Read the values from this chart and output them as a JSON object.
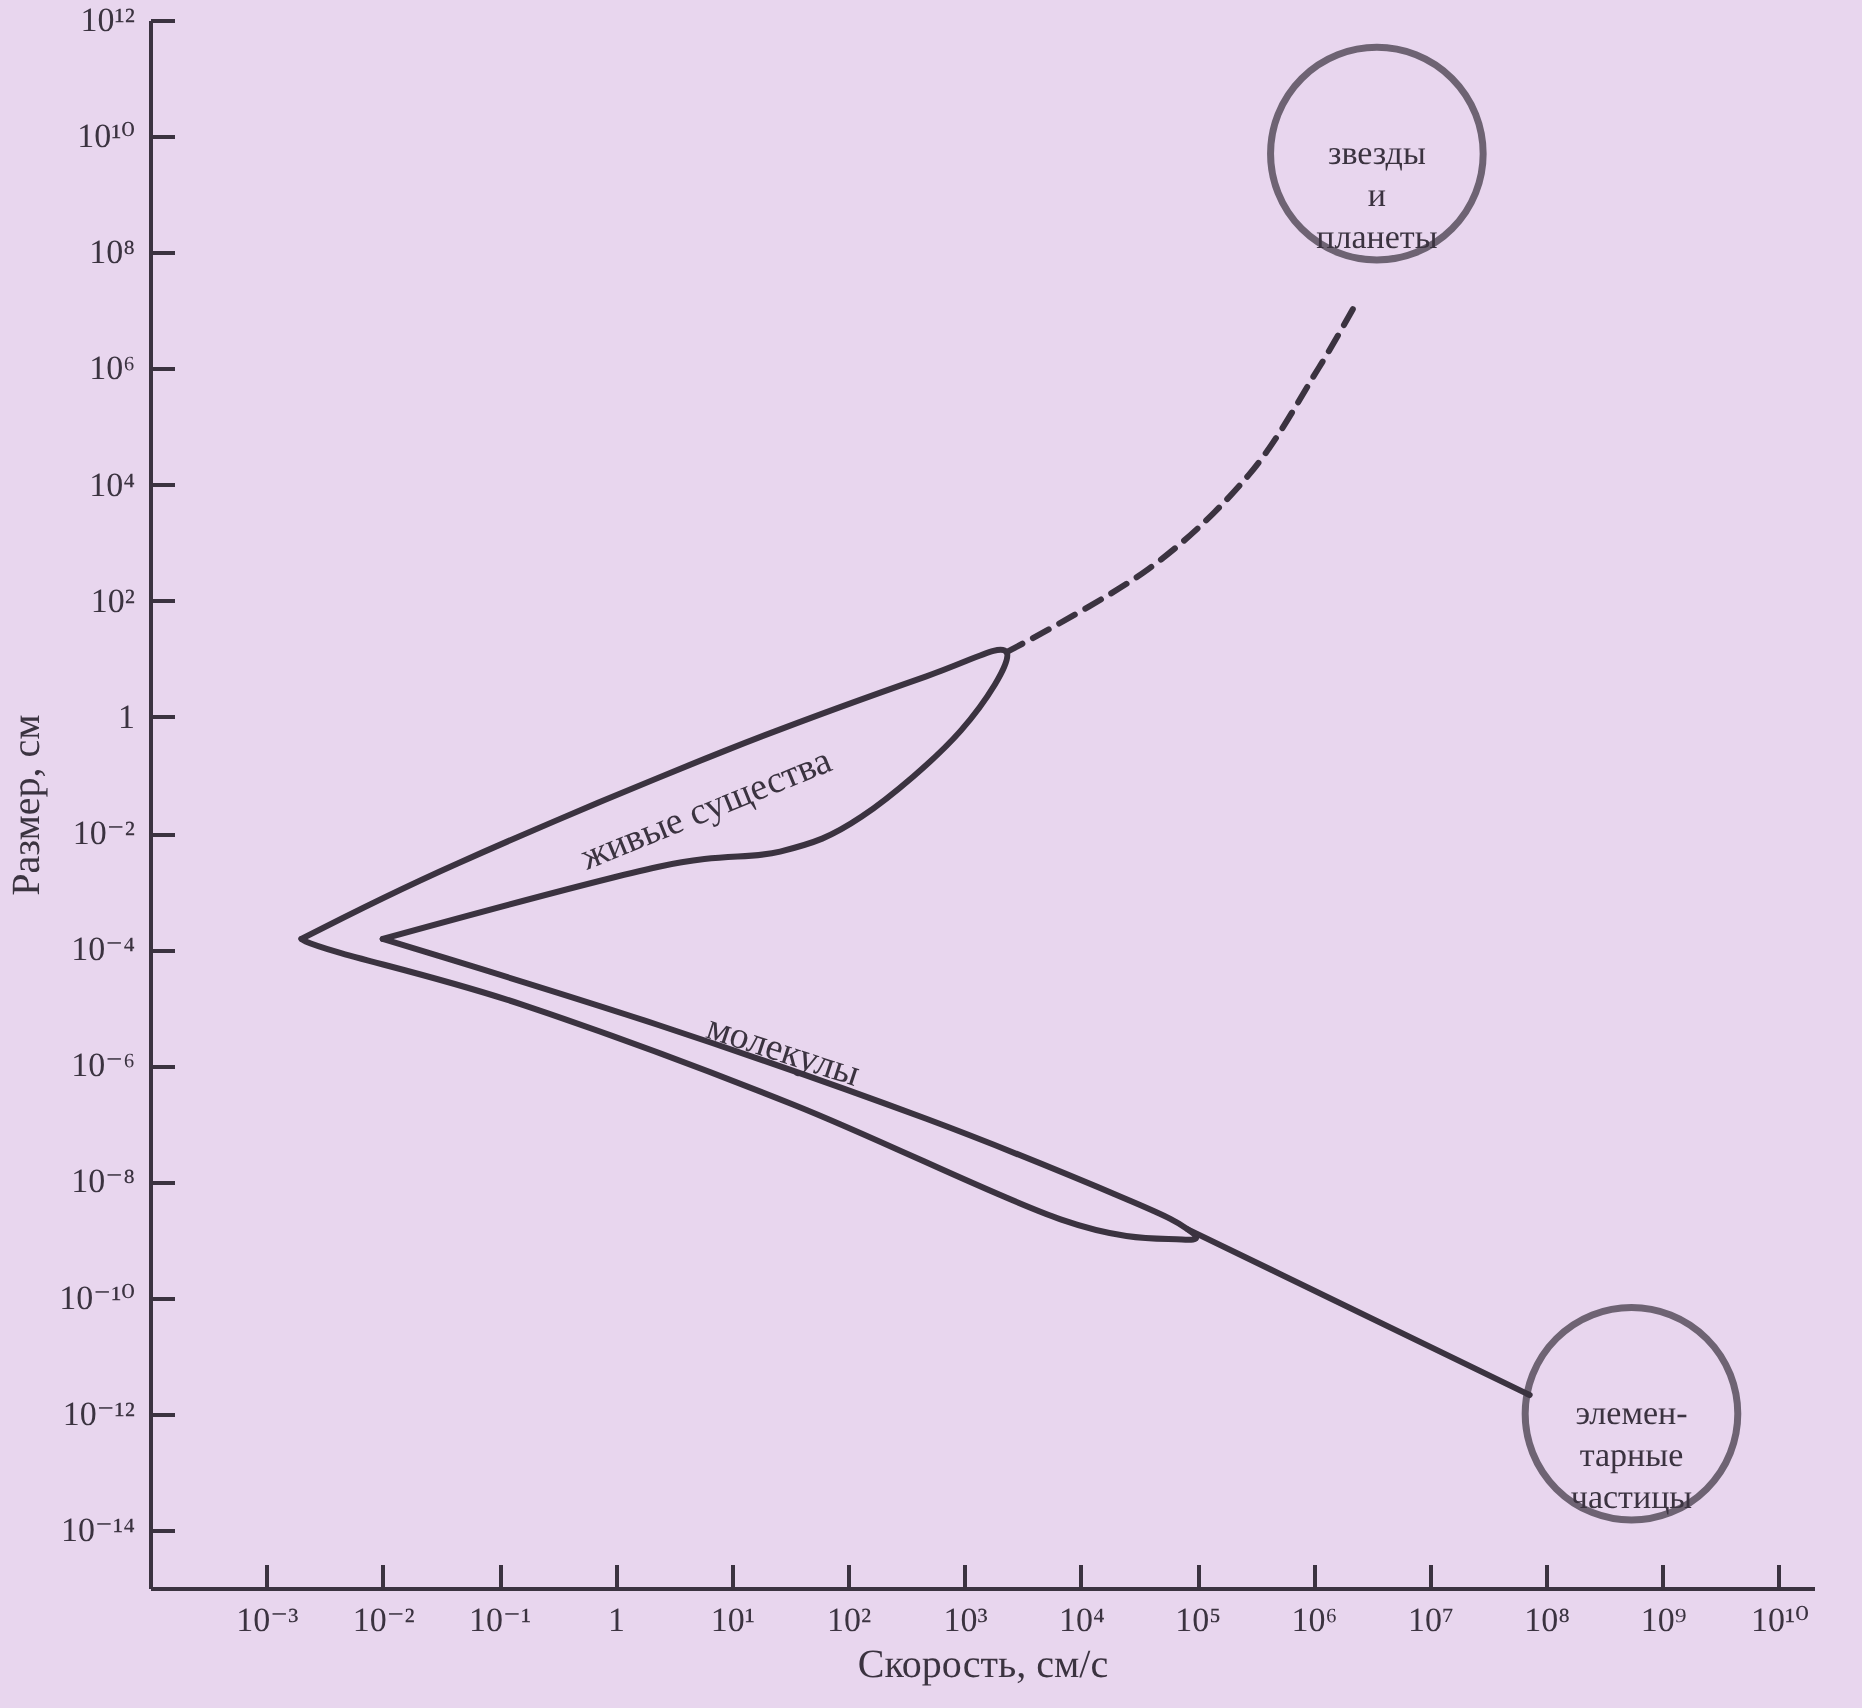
{
  "chart_data": {
    "type": "line",
    "xlabel": "Скорость, см/с",
    "ylabel": "Размер, см",
    "log": "xy",
    "xlim": [
      0.0001,
      20000000000
    ],
    "ylim": [
      1e-15,
      1000000000000
    ],
    "xticks": [
      {
        "value": 0.001,
        "label": "10⁻³"
      },
      {
        "value": 0.01,
        "label": "10⁻²"
      },
      {
        "value": 0.1,
        "label": "10⁻¹"
      },
      1,
      {
        "value": 10,
        "label": "10¹"
      },
      {
        "value": 100,
        "label": "10²"
      },
      {
        "value": 1000,
        "label": "10³"
      },
      {
        "value": 10000,
        "label": "10⁴"
      },
      {
        "value": 100000,
        "label": "10⁵"
      },
      {
        "value": 1000000,
        "label": "10⁶"
      },
      {
        "value": 10000000,
        "label": "10⁷"
      },
      {
        "value": 100000000,
        "label": "10⁸"
      },
      {
        "value": 1000000000,
        "label": "10⁹"
      },
      {
        "value": 10000000000,
        "label": "10¹⁰"
      }
    ],
    "yticks": [
      {
        "value": 1e-14,
        "label": "10⁻¹⁴"
      },
      {
        "value": 1e-12,
        "label": "10⁻¹²"
      },
      {
        "value": 1e-10,
        "label": "10⁻¹⁰"
      },
      {
        "value": 1e-08,
        "label": "10⁻⁸"
      },
      {
        "value": 1e-06,
        "label": "10⁻⁶"
      },
      {
        "value": 0.0001,
        "label": "10⁻⁴"
      },
      {
        "value": 0.01,
        "label": "10⁻²"
      },
      1,
      {
        "value": 100,
        "label": "10²"
      },
      {
        "value": 10000,
        "label": "10⁴"
      },
      {
        "value": 1000000,
        "label": "10⁶"
      },
      {
        "value": 100000000,
        "label": "10⁸"
      },
      {
        "value": 10000000000,
        "label": "10¹⁰"
      },
      {
        "value": 1000000000000,
        "label": "10¹²"
      }
    ],
    "series": [
      {
        "name": "живые существа",
        "color": "#3b3340",
        "x": [
          0.002,
          0.044,
          8.7,
          470,
          2300,
          930,
          130,
          26,
          2.3,
          0.01
        ],
        "values": [
          0.00015,
          0.003,
          0.26,
          5.0,
          13,
          0.58,
          0.019,
          0.0048,
          0.0026,
          0.00015
        ]
      },
      {
        "name": "молекулы",
        "color": "#3b3340",
        "x": [
          0.01,
          2.3,
          470,
          25000,
          83000,
          74000,
          6800,
          34,
          0.16,
          0.0041,
          0.002
        ],
        "values": [
          0.00015,
          5e-06,
          1.2e-07,
          4.9e-09,
          1.5e-09,
          1e-09,
          2.2e-09,
          2.1e-07,
          1.1e-05,
          8.9e-05,
          0.00015
        ]
      },
      {
        "color": "#3b3340",
        "x": [
          83000,
          72000000
        ],
        "values": [
          1.5e-09,
          2.1e-12
        ]
      },
      {
        "color": "#3b3340",
        "line_style": "dashed",
        "x": [
          2300,
          38000,
          280000,
          1100000,
          2400000
        ],
        "values": [
          13,
          350,
          15000,
          1000000,
          15000000
        ]
      },
      {
        "type": "scatter",
        "marker": "circle",
        "name": "звезды\nи\nпланеты",
        "color": "#3b3340",
        "x": [
          3500000
        ],
        "values": [
          5000000000
        ]
      },
      {
        "type": "scatter",
        "marker": "circle",
        "name": "элемен-\nтарные\nчастицы",
        "color": "#3b3340",
        "x": [
          540000000
        ],
        "values": [
          1e-12
        ]
      }
    ]
  }
}
